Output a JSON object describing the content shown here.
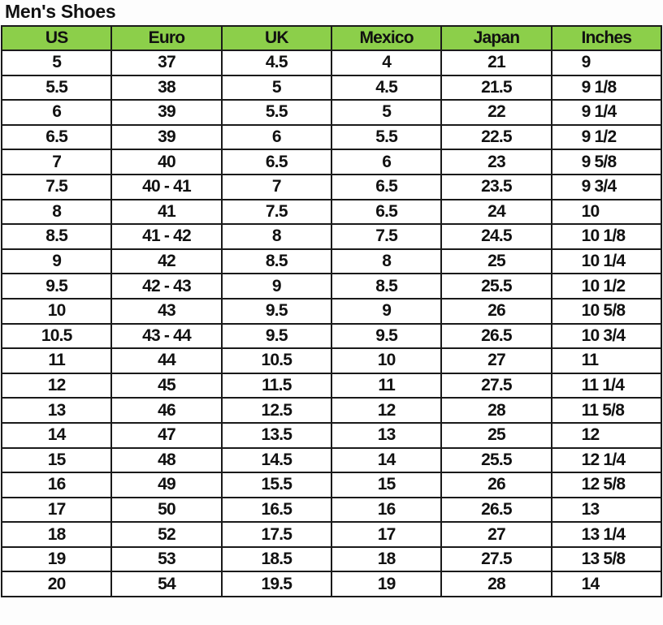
{
  "title": "Men's Shoes",
  "header_color": "#8ccf4a",
  "columns": [
    "US",
    "Euro",
    "UK",
    "Mexico",
    "Japan",
    "Inches"
  ],
  "rows": [
    [
      "5",
      "37",
      "4.5",
      "4",
      "21",
      "9"
    ],
    [
      "5.5",
      "38",
      "5",
      "4.5",
      "21.5",
      "9 1/8"
    ],
    [
      "6",
      "39",
      "5.5",
      "5",
      "22",
      "9 1/4"
    ],
    [
      "6.5",
      "39",
      "6",
      "5.5",
      "22.5",
      "9 1/2"
    ],
    [
      "7",
      "40",
      "6.5",
      "6",
      "23",
      "9 5/8"
    ],
    [
      "7.5",
      "40 - 41",
      "7",
      "6.5",
      "23.5",
      "9 3/4"
    ],
    [
      "8",
      "41",
      "7.5",
      "6.5",
      "24",
      "10"
    ],
    [
      "8.5",
      "41 - 42",
      "8",
      "7.5",
      "24.5",
      "10 1/8"
    ],
    [
      "9",
      "42",
      "8.5",
      "8",
      "25",
      "10 1/4"
    ],
    [
      "9.5",
      "42 - 43",
      "9",
      "8.5",
      "25.5",
      "10 1/2"
    ],
    [
      "10",
      "43",
      "9.5",
      "9",
      "26",
      "10 5/8"
    ],
    [
      "10.5",
      "43 - 44",
      "9.5",
      "9.5",
      "26.5",
      "10 3/4"
    ],
    [
      "11",
      "44",
      "10.5",
      "10",
      "27",
      "11"
    ],
    [
      "12",
      "45",
      "11.5",
      "11",
      "27.5",
      "11 1/4"
    ],
    [
      "13",
      "46",
      "12.5",
      "12",
      "28",
      "11 5/8"
    ],
    [
      "14",
      "47",
      "13.5",
      "13",
      "25",
      "12"
    ],
    [
      "15",
      "48",
      "14.5",
      "14",
      "25.5",
      "12 1/4"
    ],
    [
      "16",
      "49",
      "15.5",
      "15",
      "26",
      "12 5/8"
    ],
    [
      "17",
      "50",
      "16.5",
      "16",
      "26.5",
      "13"
    ],
    [
      "18",
      "52",
      "17.5",
      "17",
      "27",
      "13 1/4"
    ],
    [
      "19",
      "53",
      "18.5",
      "18",
      "27.5",
      "13 5/8"
    ],
    [
      "20",
      "54",
      "19.5",
      "19",
      "28",
      "14"
    ]
  ]
}
